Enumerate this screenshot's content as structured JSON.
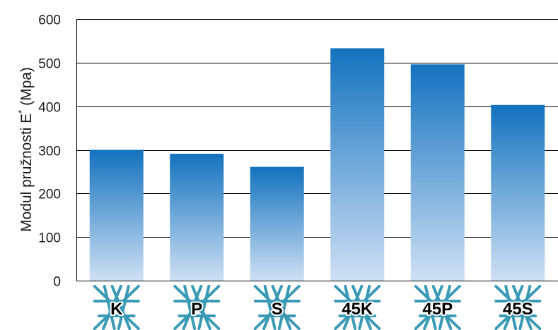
{
  "chart_data": {
    "type": "bar",
    "categories": [
      "K",
      "P",
      "S",
      "45K",
      "45P",
      "45S"
    ],
    "values": [
      300,
      291,
      261,
      533,
      496,
      403
    ],
    "ylabel": "Modul pružnosti E",
    "ylabel_superscript": "*",
    "ylabel_unit": "(Mpa)",
    "ylim": [
      0,
      600
    ],
    "yticks": [
      "0",
      "100",
      "200",
      "300",
      "400",
      "500",
      "600"
    ],
    "grid": true,
    "legend": "none",
    "colors": {
      "bar_top": "#1372be",
      "bar_bottom": "#cfe0f4",
      "category_icon": "#3a9ab5"
    },
    "category_icons": [
      "lattice-icon",
      "lattice-icon",
      "lattice-icon",
      "lattice-icon",
      "lattice-icon",
      "lattice-icon"
    ]
  }
}
